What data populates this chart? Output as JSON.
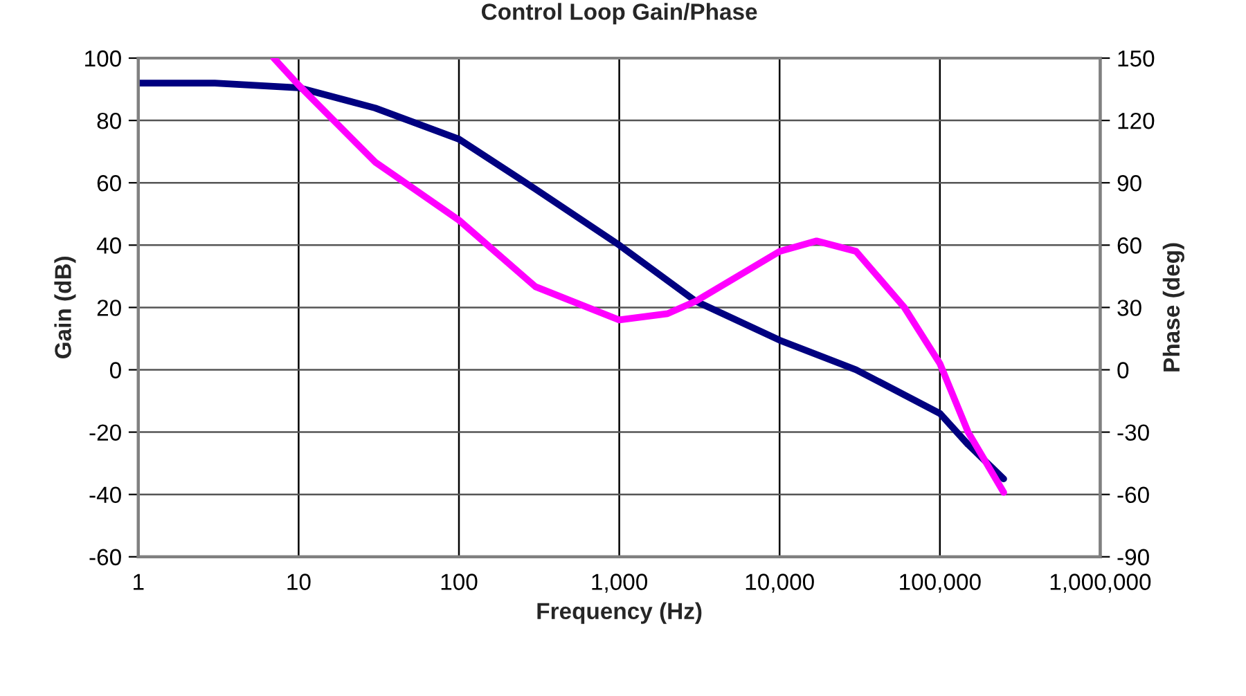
{
  "chart_data": {
    "type": "line",
    "title": "Control Loop Gain/Phase",
    "xlabel": "Frequency (Hz)",
    "ylabel": "Gain (dB)",
    "y2label": "Phase (deg)",
    "log": "x",
    "grid": true,
    "marker": "none",
    "line_style": "solid",
    "xlim": [
      1,
      1000000
    ],
    "xticks": [
      1,
      10,
      100,
      {
        "value": 1000,
        "label": "1,000"
      },
      {
        "value": 10000,
        "label": "10,000"
      },
      {
        "value": 100000,
        "label": "100,000"
      },
      {
        "value": 1000000,
        "label": "1,000,000"
      }
    ],
    "ylim": [
      -60,
      100
    ],
    "yticks": [
      -60,
      -40,
      -20,
      0,
      20,
      40,
      60,
      80,
      100
    ],
    "y2lim": [
      -90,
      150
    ],
    "y2ticks": [
      -90,
      -60,
      -30,
      0,
      30,
      60,
      90,
      120,
      150
    ],
    "series": [
      {
        "color": "#000080",
        "x": [
          1,
          3,
          10,
          30,
          100,
          300,
          1000,
          3000,
          10000,
          30000,
          100000,
          150000,
          250000
        ],
        "values": [
          92,
          92,
          90.5,
          84,
          74,
          58,
          40,
          22,
          9.5,
          0,
          -14,
          -24,
          -35
        ]
      },
      {
        "color": "#ff00ff",
        "axis": "y2",
        "x": [
          7,
          10,
          30,
          100,
          300,
          1000,
          2000,
          3000,
          10000,
          17000,
          30000,
          60000,
          100000,
          150000,
          250000
        ],
        "values": [
          150,
          137,
          100,
          72,
          40,
          24,
          27,
          33,
          57,
          62,
          57,
          30,
          3,
          -30,
          -59
        ]
      }
    ]
  }
}
